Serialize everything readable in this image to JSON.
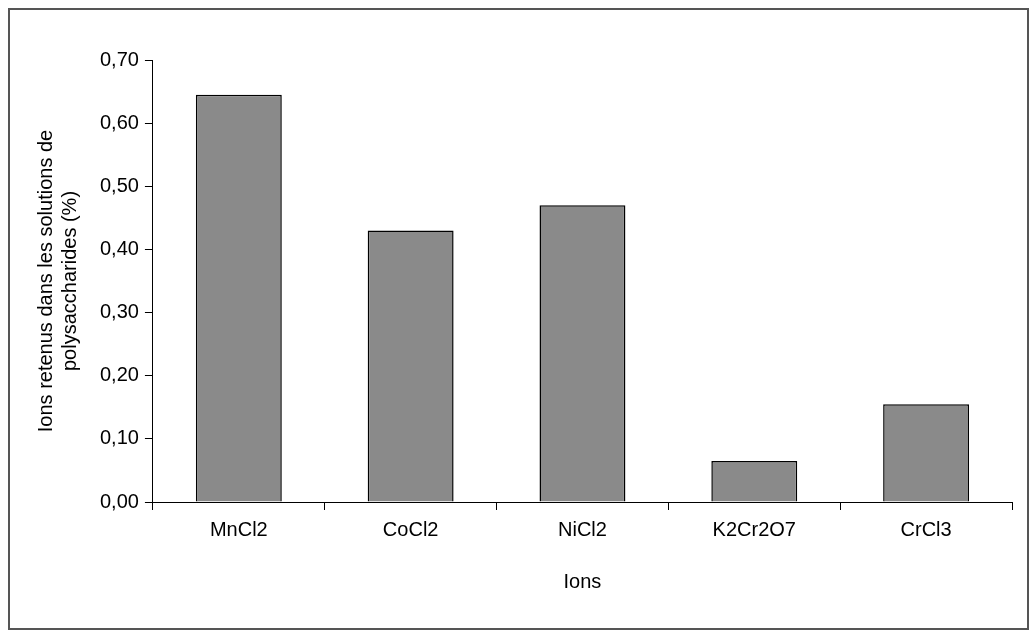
{
  "chart_data": {
    "type": "bar",
    "xlabel": "Ions",
    "ylabel": "Ions retenus dans les solutions de polysaccharides (%)",
    "categories": [
      "MnCl2",
      "CoCl2",
      "NiCl2",
      "K2Cr2O7",
      "CrCl3"
    ],
    "values": [
      0.645,
      0.43,
      0.47,
      0.065,
      0.155
    ],
    "color": "#8a8a8a",
    "ylim": [
      0,
      0.7
    ],
    "yticks": [
      {
        "value": 0,
        "label": "0,00"
      },
      {
        "value": 0.1,
        "label": "0,10"
      },
      {
        "value": 0.2,
        "label": "0,20"
      },
      {
        "value": 0.3,
        "label": "0,30"
      },
      {
        "value": 0.4,
        "label": "0,40"
      },
      {
        "value": 0.5,
        "label": "0,50"
      },
      {
        "value": 0.6,
        "label": "0,60"
      },
      {
        "value": 0.7,
        "label": "0,70"
      }
    ],
    "grid": false,
    "legend": false
  }
}
